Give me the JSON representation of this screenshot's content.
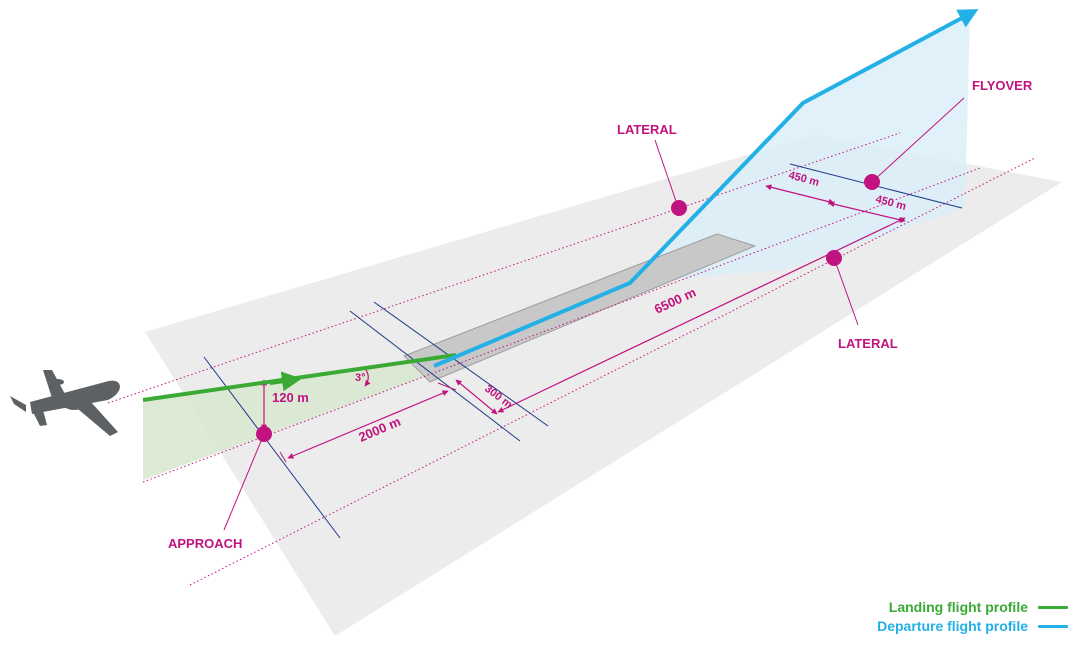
{
  "labels": {
    "lateral_top": "LATERAL",
    "lateral_bottom": "LATERAL",
    "flyover": "FLYOVER",
    "approach": "APPROACH"
  },
  "dimensions": {
    "runway_length": "6500 m",
    "approach_distance": "2000 m",
    "runway_end_offset": "300 m",
    "lateral_offset_1": "450 m",
    "lateral_offset_2": "450 m",
    "approach_height": "120 m",
    "glide_angle": "3°"
  },
  "legend": {
    "landing": "Landing flight profile",
    "departure": "Departure flight profile"
  },
  "colors": {
    "landing": "#3aaa35",
    "departure": "#22b0e6",
    "measurement": "#c1137f",
    "grid_lines": "#1f3a8a",
    "ground": "#e8e8e8",
    "runway": "#c8c8c8",
    "aircraft": "#5e6163"
  },
  "icons": {
    "aircraft": "airplane-icon"
  }
}
